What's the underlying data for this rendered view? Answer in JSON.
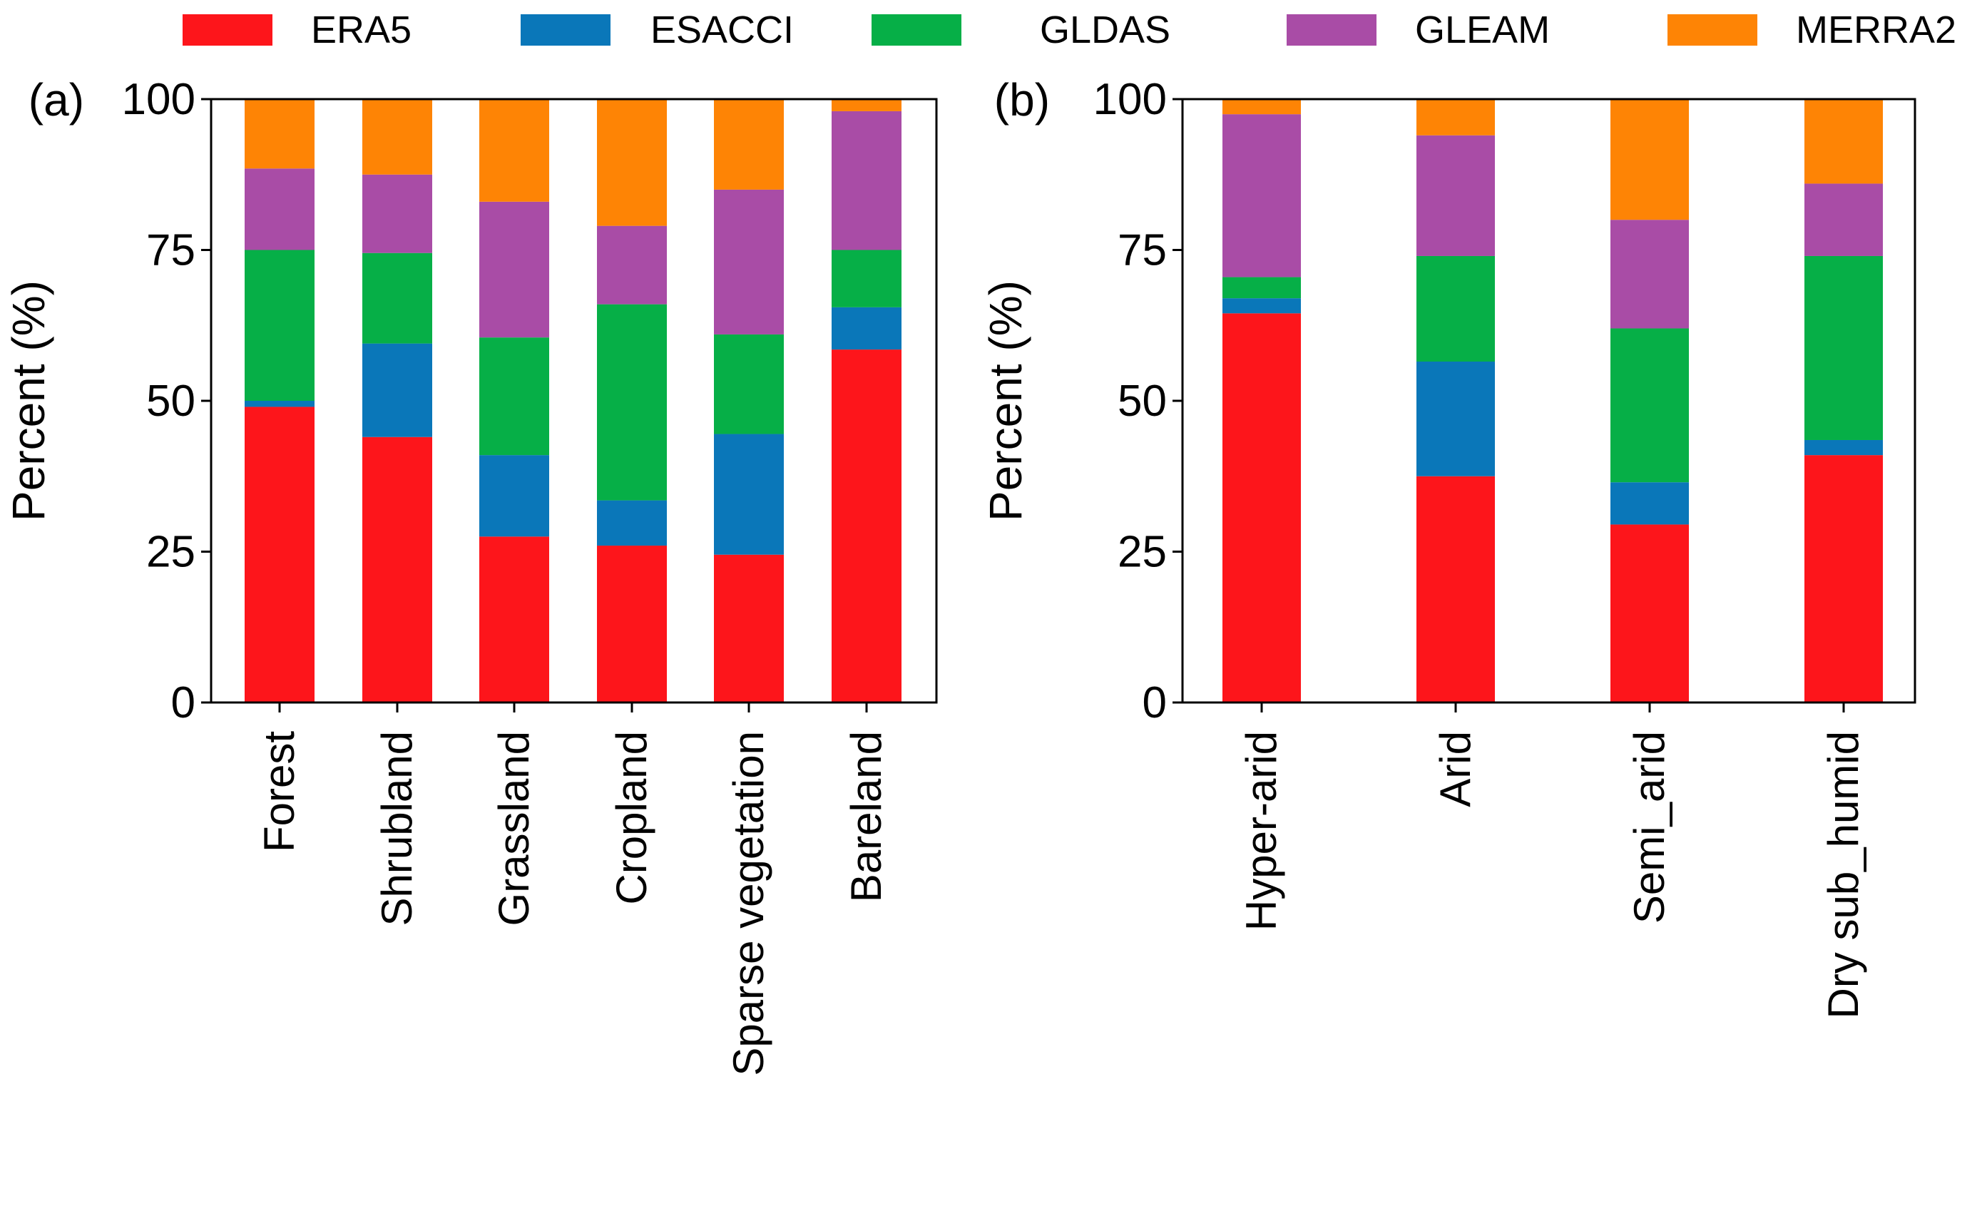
{
  "figure": {
    "legend": [
      {
        "name": "ERA5",
        "color": "#fd151b"
      },
      {
        "name": "ESACCI",
        "color": "#0a77b9"
      },
      {
        "name": "GLDAS",
        "color": "#06af47"
      },
      {
        "name": "GLEAM",
        "color": "#a94ca6"
      },
      {
        "name": "MERRA2",
        "color": "#fe8405"
      }
    ]
  },
  "chart_data": [
    {
      "type": "bar",
      "stacked": true,
      "panel_label": "(a)",
      "title": "",
      "xlabel": "",
      "ylabel": "Percent (%)",
      "ylim": [
        0,
        100
      ],
      "yticks": [
        0,
        25,
        50,
        75,
        100
      ],
      "legend_position": "top",
      "categories": [
        "Forest",
        "Shrubland",
        "Grassland",
        "Cropland",
        "Sparse vegetation",
        "Bareland"
      ],
      "series": [
        {
          "name": "ERA5",
          "color": "#fd151b",
          "values": [
            49,
            44,
            27.5,
            26,
            24.5,
            58.5
          ]
        },
        {
          "name": "ESACCI",
          "color": "#0a77b9",
          "values": [
            1,
            15.5,
            13.5,
            7.5,
            20,
            7
          ]
        },
        {
          "name": "GLDAS",
          "color": "#06af47",
          "values": [
            25,
            15,
            19.5,
            32.5,
            16.5,
            9.5
          ]
        },
        {
          "name": "GLEAM",
          "color": "#a94ca6",
          "values": [
            13.5,
            13,
            22.5,
            13,
            24,
            23
          ]
        },
        {
          "name": "MERRA2",
          "color": "#fe8405",
          "values": [
            11.5,
            12.5,
            17,
            21,
            15,
            2
          ]
        }
      ]
    },
    {
      "type": "bar",
      "stacked": true,
      "panel_label": "(b)",
      "title": "",
      "xlabel": "",
      "ylabel": "Percent (%)",
      "ylim": [
        0,
        100
      ],
      "yticks": [
        0,
        25,
        50,
        75,
        100
      ],
      "legend_position": "top",
      "categories": [
        "Hyper-arid",
        "Arid",
        "Semi_arid",
        "Dry sub_humid"
      ],
      "series": [
        {
          "name": "ERA5",
          "color": "#fd151b",
          "values": [
            64.5,
            37.5,
            29.5,
            41
          ]
        },
        {
          "name": "ESACCI",
          "color": "#0a77b9",
          "values": [
            2.5,
            19,
            7,
            2.5
          ]
        },
        {
          "name": "GLDAS",
          "color": "#06af47",
          "values": [
            3.5,
            17.5,
            25.5,
            30.5
          ]
        },
        {
          "name": "GLEAM",
          "color": "#a94ca6",
          "values": [
            27,
            20,
            18,
            12
          ]
        },
        {
          "name": "MERRA2",
          "color": "#fe8405",
          "values": [
            2.5,
            6,
            20,
            14
          ]
        }
      ]
    }
  ]
}
